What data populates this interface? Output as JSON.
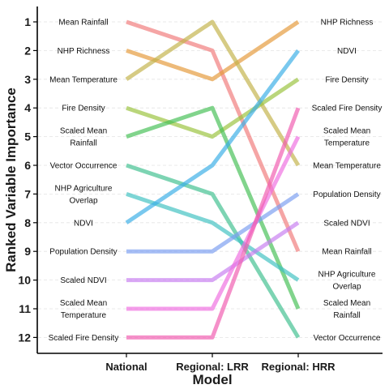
{
  "chart_data": {
    "type": "line",
    "title": "",
    "xlabel": "Model",
    "ylabel": "Ranked Variable Importance",
    "categories": [
      "National",
      "Regional: LRR",
      "Regional: HRR"
    ],
    "y_ticks": [
      "1",
      "2",
      "3",
      "4",
      "5",
      "6",
      "7",
      "8",
      "9",
      "10",
      "11",
      "12"
    ],
    "ylim": [
      12,
      1
    ],
    "y_reversed": true,
    "grid": "dashed horizontal",
    "legend": "none (direct labels at left and right)",
    "series": [
      {
        "name": "Mean Rainfall",
        "color": "#f07a7a",
        "values": [
          1,
          2,
          9
        ]
      },
      {
        "name": "NHP Richness",
        "color": "#e59a3a",
        "values": [
          2,
          3,
          1
        ]
      },
      {
        "name": "Mean Temperature",
        "color": "#c2b24a",
        "values": [
          3,
          1,
          6
        ]
      },
      {
        "name": "Fire Density",
        "color": "#9ac23c",
        "values": [
          4,
          5,
          3
        ]
      },
      {
        "name": "Scaled Mean Rainfall",
        "color": "#45bf55",
        "values": [
          5,
          4,
          11
        ]
      },
      {
        "name": "Vector Occurrence",
        "color": "#3fbf8f",
        "values": [
          6,
          7,
          12
        ]
      },
      {
        "name": "NHP Agriculture Overlap",
        "color": "#3fc1c1",
        "values": [
          7,
          8,
          10
        ]
      },
      {
        "name": "NDVI",
        "color": "#3aaee6",
        "values": [
          8,
          6,
          2
        ]
      },
      {
        "name": "Population Density",
        "color": "#7a9ef0",
        "values": [
          9,
          9,
          7
        ]
      },
      {
        "name": "Scaled NDVI",
        "color": "#c77ef0",
        "values": [
          10,
          10,
          8
        ]
      },
      {
        "name": "Scaled Mean Temperature",
        "color": "#ef6fe0",
        "values": [
          11,
          11,
          5
        ]
      },
      {
        "name": "Scaled Fire Density",
        "color": "#f05bb0",
        "values": [
          12,
          12,
          4
        ]
      }
    ],
    "left_labels": [
      {
        "rank": 1,
        "lines": [
          "Mean Rainfall"
        ]
      },
      {
        "rank": 2,
        "lines": [
          "NHP Richness"
        ]
      },
      {
        "rank": 3,
        "lines": [
          "Mean Temperature"
        ]
      },
      {
        "rank": 4,
        "lines": [
          "Fire Density"
        ]
      },
      {
        "rank": 5,
        "lines": [
          "Scaled Mean",
          "Rainfall"
        ]
      },
      {
        "rank": 6,
        "lines": [
          "Vector Occurrence"
        ]
      },
      {
        "rank": 7,
        "lines": [
          "NHP Agriculture",
          "Overlap"
        ]
      },
      {
        "rank": 8,
        "lines": [
          "NDVI"
        ]
      },
      {
        "rank": 9,
        "lines": [
          "Population Density"
        ]
      },
      {
        "rank": 10,
        "lines": [
          "Scaled NDVI"
        ]
      },
      {
        "rank": 11,
        "lines": [
          "Scaled Mean",
          "Temperature"
        ]
      },
      {
        "rank": 12,
        "lines": [
          "Scaled Fire Density"
        ]
      }
    ],
    "right_labels": [
      {
        "rank": 1,
        "lines": [
          "NHP Richness"
        ]
      },
      {
        "rank": 2,
        "lines": [
          "NDVI"
        ]
      },
      {
        "rank": 3,
        "lines": [
          "Fire Density"
        ]
      },
      {
        "rank": 4,
        "lines": [
          "Scaled Fire Density"
        ]
      },
      {
        "rank": 5,
        "lines": [
          "Scaled Mean",
          "Temperature"
        ]
      },
      {
        "rank": 6,
        "lines": [
          "Mean Temperature"
        ]
      },
      {
        "rank": 7,
        "lines": [
          "Population Density"
        ]
      },
      {
        "rank": 8,
        "lines": [
          "Scaled NDVI"
        ]
      },
      {
        "rank": 9,
        "lines": [
          "Mean Rainfall"
        ]
      },
      {
        "rank": 10,
        "lines": [
          "NHP Agriculture",
          "Overlap"
        ]
      },
      {
        "rank": 11,
        "lines": [
          "Scaled Mean",
          "Rainfall"
        ]
      },
      {
        "rank": 12,
        "lines": [
          "Vector Occurrence"
        ]
      }
    ]
  }
}
